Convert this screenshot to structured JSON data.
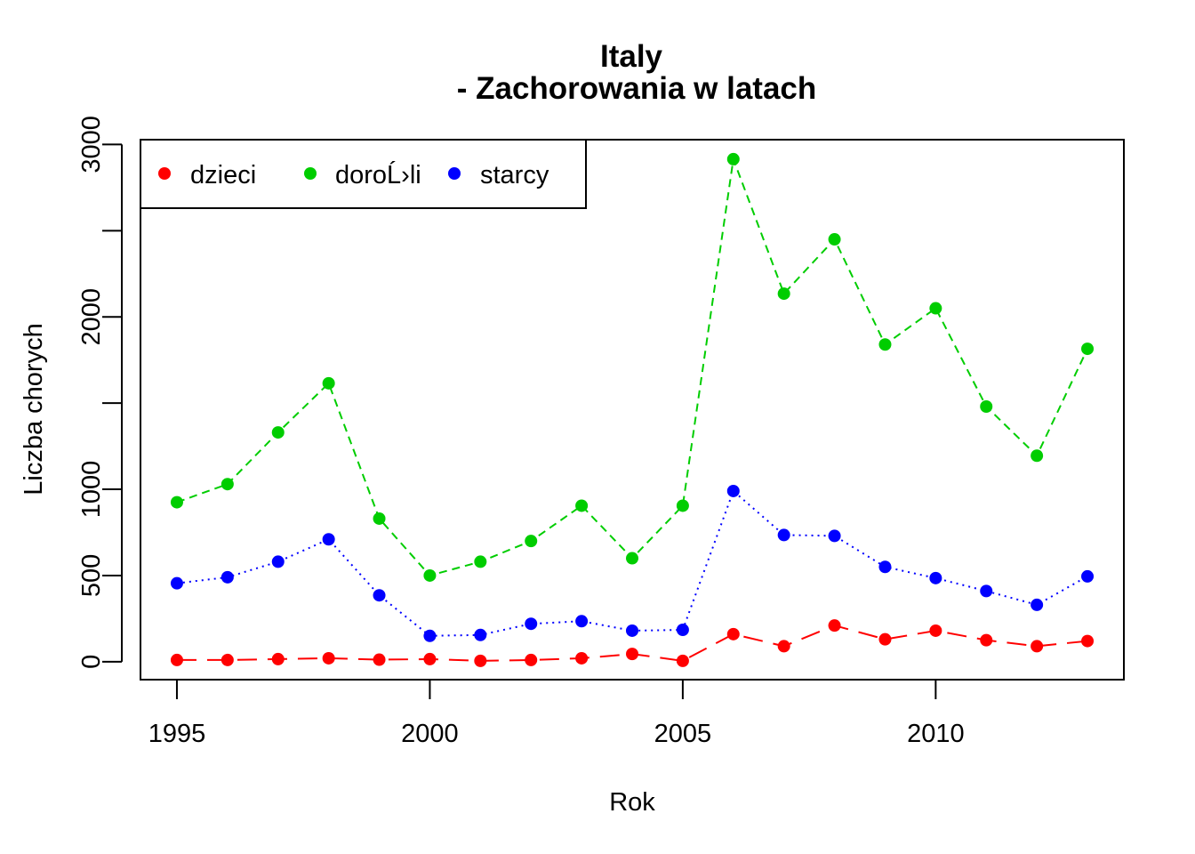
{
  "chart_data": {
    "type": "line",
    "title": [
      "Italy",
      "- Zachorowania w latach"
    ],
    "xlabel": "Rok",
    "ylabel": "Liczba chorych",
    "xlim": [
      1994.28,
      2013.72
    ],
    "ylim": [
      -104,
      3028
    ],
    "x_ticks": [
      1995,
      2000,
      2005,
      2010
    ],
    "y_ticks": [
      0,
      500,
      1000,
      2000,
      3000
    ],
    "y_minor_ticks": [
      1500,
      2500
    ],
    "grid": false,
    "legend_position": "top-left",
    "x": [
      1995,
      1996,
      1997,
      1998,
      1999,
      2000,
      2001,
      2002,
      2003,
      2004,
      2005,
      2006,
      2007,
      2008,
      2009,
      2010,
      2011,
      2012,
      2013
    ],
    "series": [
      {
        "name": "dzieci",
        "color": "#FF0000",
        "line_style": "long-dash",
        "values": [
          10,
          10,
          15,
          20,
          12,
          15,
          5,
          10,
          20,
          45,
          5,
          160,
          90,
          210,
          130,
          180,
          125,
          90,
          120
        ]
      },
      {
        "name": "doroĹ›li",
        "color": "#00CD00",
        "line_style": "dashed",
        "values": [
          925,
          1030,
          1330,
          1615,
          830,
          500,
          580,
          700,
          905,
          600,
          905,
          2915,
          2135,
          2450,
          1840,
          2050,
          1480,
          1195,
          1815
        ]
      },
      {
        "name": "starcy",
        "color": "#0000FF",
        "line_style": "dotted",
        "values": [
          455,
          490,
          580,
          710,
          385,
          150,
          155,
          220,
          235,
          180,
          185,
          990,
          735,
          730,
          550,
          485,
          410,
          330,
          495
        ]
      }
    ]
  }
}
